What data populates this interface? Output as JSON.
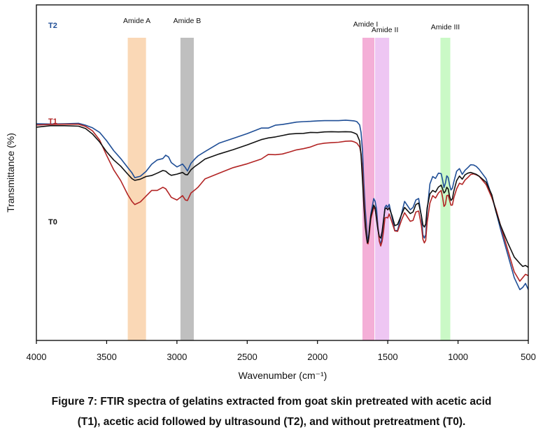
{
  "chart_data": {
    "type": "line",
    "xlabel": "Wavenumber (cm⁻¹)",
    "ylabel": "Transmittance (%)",
    "xlim": [
      4000,
      500
    ],
    "x_reversed": true,
    "x_ticks": [
      4000,
      3500,
      3000,
      2500,
      2000,
      1500,
      1000,
      500
    ],
    "y_ticks": [],
    "grid": false,
    "bands": [
      {
        "label": "Amide A",
        "from": 3350,
        "to": 3220,
        "color": "#f8c99a"
      },
      {
        "label": "Amide B",
        "from": 2975,
        "to": 2880,
        "color": "#a6a6a6"
      },
      {
        "label": "Amide I",
        "from": 1680,
        "to": 1595,
        "color": "#f090c8"
      },
      {
        "label": "Amide II",
        "from": 1590,
        "to": 1490,
        "color": "#e8b0ee"
      },
      {
        "label": "Amide III",
        "from": 1125,
        "to": 1055,
        "color": "#b6f7b0"
      }
    ],
    "series": [
      {
        "name": "T2",
        "color": "#1f4e96",
        "x": [
          4000,
          3900,
          3800,
          3700,
          3650,
          3600,
          3550,
          3500,
          3450,
          3400,
          3350,
          3320,
          3300,
          3260,
          3220,
          3180,
          3140,
          3100,
          3080,
          3060,
          3040,
          3000,
          2960,
          2940,
          2925,
          2900,
          2870,
          2850,
          2800,
          2700,
          2600,
          2500,
          2400,
          2350,
          2300,
          2250,
          2200,
          2150,
          2100,
          2050,
          2000,
          1950,
          1900,
          1850,
          1800,
          1760,
          1740,
          1720,
          1700,
          1690,
          1680,
          1670,
          1660,
          1650,
          1645,
          1640,
          1635,
          1630,
          1620,
          1600,
          1590,
          1580,
          1570,
          1560,
          1550,
          1540,
          1530,
          1520,
          1510,
          1500,
          1490,
          1470,
          1450,
          1430,
          1400,
          1380,
          1340,
          1320,
          1300,
          1280,
          1260,
          1250,
          1240,
          1230,
          1220,
          1200,
          1180,
          1160,
          1140,
          1120,
          1110,
          1100,
          1090,
          1080,
          1070,
          1060,
          1050,
          1040,
          1030,
          1010,
          990,
          970,
          950,
          930,
          910,
          890,
          870,
          850,
          800,
          760,
          730,
          700,
          650,
          600,
          560,
          540,
          520,
          500
        ],
        "y": [
          49.6,
          49.7,
          49.6,
          49.4,
          50.2,
          51.3,
          53.2,
          56.7,
          60.8,
          64.1,
          67.9,
          70.1,
          72.1,
          71.5,
          69.5,
          66.5,
          64.7,
          64.1,
          62.7,
          63.4,
          65.8,
          67.6,
          66.4,
          67.9,
          69.3,
          66.1,
          64.1,
          63.0,
          61.2,
          57.7,
          55.7,
          53.7,
          51.4,
          51.4,
          50.2,
          49.9,
          49.4,
          48.9,
          48.7,
          48.6,
          48.4,
          48.3,
          48.3,
          48.3,
          48.1,
          48.3,
          48.4,
          48.7,
          50.1,
          53.3,
          60.8,
          74.4,
          85.2,
          93.4,
          97.0,
          98.3,
          96.2,
          92.5,
          87.2,
          80.8,
          82.0,
          85.2,
          92.5,
          98.2,
          99.8,
          96.8,
          90.8,
          84.5,
          83.6,
          84.5,
          83.2,
          88.7,
          94.2,
          94.1,
          86.7,
          82.0,
          85.5,
          84.5,
          81.4,
          80.8,
          88.5,
          95.9,
          97.3,
          95.9,
          86.0,
          74.7,
          71.6,
          72.4,
          70.2,
          70.4,
          73.1,
          76.2,
          74.4,
          71.3,
          72.0,
          75.1,
          77.2,
          76.5,
          73.9,
          69.4,
          68.3,
          70.7,
          69.0,
          67.9,
          66.7,
          66.8,
          67.4,
          68.6,
          72.5,
          79.9,
          86.2,
          93.0,
          103.4,
          113.8,
          118.8,
          117.9,
          116.2,
          118.8
        ]
      },
      {
        "name": "T1",
        "color": "#b22424",
        "x": [
          4000,
          3900,
          3800,
          3700,
          3650,
          3600,
          3550,
          3500,
          3450,
          3400,
          3350,
          3320,
          3300,
          3260,
          3220,
          3180,
          3140,
          3100,
          3080,
          3060,
          3040,
          3000,
          2960,
          2940,
          2925,
          2900,
          2870,
          2850,
          2800,
          2700,
          2600,
          2500,
          2400,
          2350,
          2300,
          2250,
          2200,
          2150,
          2100,
          2050,
          2000,
          1950,
          1900,
          1850,
          1800,
          1760,
          1740,
          1720,
          1700,
          1690,
          1680,
          1670,
          1660,
          1650,
          1645,
          1640,
          1635,
          1630,
          1620,
          1600,
          1590,
          1580,
          1570,
          1560,
          1550,
          1540,
          1530,
          1520,
          1510,
          1500,
          1490,
          1470,
          1450,
          1430,
          1400,
          1380,
          1340,
          1320,
          1300,
          1280,
          1260,
          1250,
          1240,
          1230,
          1220,
          1200,
          1180,
          1160,
          1140,
          1120,
          1110,
          1100,
          1090,
          1080,
          1070,
          1060,
          1050,
          1040,
          1030,
          1010,
          990,
          970,
          950,
          930,
          910,
          890,
          870,
          850,
          800,
          760,
          730,
          700,
          650,
          600,
          560,
          540,
          520,
          500
        ],
        "y": [
          50.1,
          49.9,
          49.8,
          49.8,
          50.7,
          52.6,
          56.4,
          62.8,
          68.8,
          73.3,
          79.2,
          82.0,
          83.3,
          82.2,
          79.8,
          77.4,
          77.4,
          76.1,
          76.7,
          78.5,
          80.3,
          81.4,
          79.6,
          81.4,
          81.6,
          78.5,
          77.1,
          76.1,
          72.6,
          70.2,
          67.9,
          66.3,
          64.3,
          62.4,
          62.5,
          62.2,
          61.4,
          60.5,
          60.0,
          59.3,
          58.2,
          57.7,
          57.5,
          57.3,
          56.9,
          56.8,
          57.1,
          57.7,
          59.3,
          62.1,
          69.1,
          80.6,
          90.3,
          96.8,
          99.5,
          99.7,
          97.5,
          94.9,
          89.3,
          84.5,
          85.2,
          88.7,
          93.2,
          98.6,
          100.6,
          98.6,
          94.5,
          88.9,
          88.7,
          88.9,
          87.2,
          90.7,
          94.3,
          94.5,
          89.5,
          86.7,
          90.3,
          89.9,
          86.4,
          86.0,
          92.3,
          97.8,
          99.3,
          98.2,
          90.8,
          82.7,
          79.6,
          80.6,
          78.5,
          77.4,
          80.3,
          84.1,
          83.3,
          79.6,
          79.4,
          81.6,
          83.6,
          83.5,
          80.6,
          76.7,
          74.4,
          74.9,
          73.1,
          72.0,
          70.8,
          70.5,
          70.9,
          71.5,
          75.0,
          80.4,
          85.3,
          91.5,
          101.5,
          111.4,
          115.3,
          113.8,
          112.4,
          113.0
        ]
      },
      {
        "name": "T0",
        "color": "#111111",
        "x": [
          4000,
          3900,
          3800,
          3700,
          3650,
          3600,
          3550,
          3500,
          3450,
          3400,
          3350,
          3320,
          3300,
          3260,
          3220,
          3180,
          3140,
          3100,
          3080,
          3060,
          3040,
          3000,
          2960,
          2940,
          2925,
          2900,
          2870,
          2850,
          2800,
          2700,
          2600,
          2500,
          2400,
          2350,
          2300,
          2250,
          2200,
          2150,
          2100,
          2050,
          2000,
          1950,
          1900,
          1850,
          1800,
          1760,
          1740,
          1720,
          1700,
          1690,
          1680,
          1670,
          1660,
          1650,
          1645,
          1640,
          1635,
          1630,
          1620,
          1600,
          1590,
          1580,
          1570,
          1560,
          1550,
          1540,
          1530,
          1520,
          1510,
          1500,
          1490,
          1470,
          1450,
          1430,
          1400,
          1380,
          1340,
          1320,
          1300,
          1280,
          1260,
          1250,
          1240,
          1230,
          1220,
          1200,
          1180,
          1160,
          1140,
          1120,
          1110,
          1100,
          1090,
          1080,
          1070,
          1060,
          1050,
          1040,
          1030,
          1010,
          990,
          970,
          950,
          930,
          910,
          890,
          870,
          850,
          800,
          760,
          730,
          700,
          650,
          600,
          560,
          540,
          520,
          500
        ],
        "y": [
          51.0,
          50.4,
          50.4,
          50.6,
          51.6,
          53.9,
          57.2,
          61.3,
          64.7,
          67.3,
          70.6,
          72.5,
          73.2,
          72.7,
          71.6,
          71.2,
          70.2,
          69.1,
          69.4,
          70.4,
          71.1,
          70.6,
          69.9,
          70.8,
          70.9,
          68.8,
          67.3,
          66.5,
          64.3,
          62.2,
          60.4,
          58.4,
          56.2,
          55.5,
          55.1,
          54.5,
          53.9,
          53.7,
          53.6,
          53.2,
          53.3,
          53.0,
          52.9,
          53.0,
          52.9,
          53.0,
          53.4,
          54.0,
          56.8,
          62.9,
          73.1,
          83.9,
          92.5,
          97.6,
          99.3,
          98.8,
          96.9,
          93.5,
          88.1,
          83.5,
          84.7,
          89.5,
          93.8,
          96.6,
          97.3,
          94.5,
          89.8,
          85.2,
          84.7,
          85.5,
          84.7,
          87.9,
          92.1,
          91.6,
          87.2,
          84.5,
          87.1,
          86.4,
          83.3,
          82.7,
          88.1,
          91.8,
          92.7,
          91.4,
          84.7,
          78.8,
          77.4,
          78.1,
          76.0,
          75.2,
          76.8,
          78.5,
          77.8,
          76.1,
          76.8,
          79.9,
          81.6,
          80.9,
          77.8,
          73.3,
          71.4,
          72.7,
          70.9,
          70.2,
          69.9,
          70.3,
          70.7,
          71.5,
          74.0,
          79.2,
          86.2,
          91.6,
          98.8,
          105.2,
          107.9,
          109.1,
          108.7,
          109.5
        ]
      }
    ]
  },
  "caption_line1": "Figure 7: FTIR spectra of gelatins extracted from goat skin pretreated with acetic acid",
  "caption_line2": "(T1), acetic acid followed by ultrasound (T2), and without pretreatment (T0)."
}
